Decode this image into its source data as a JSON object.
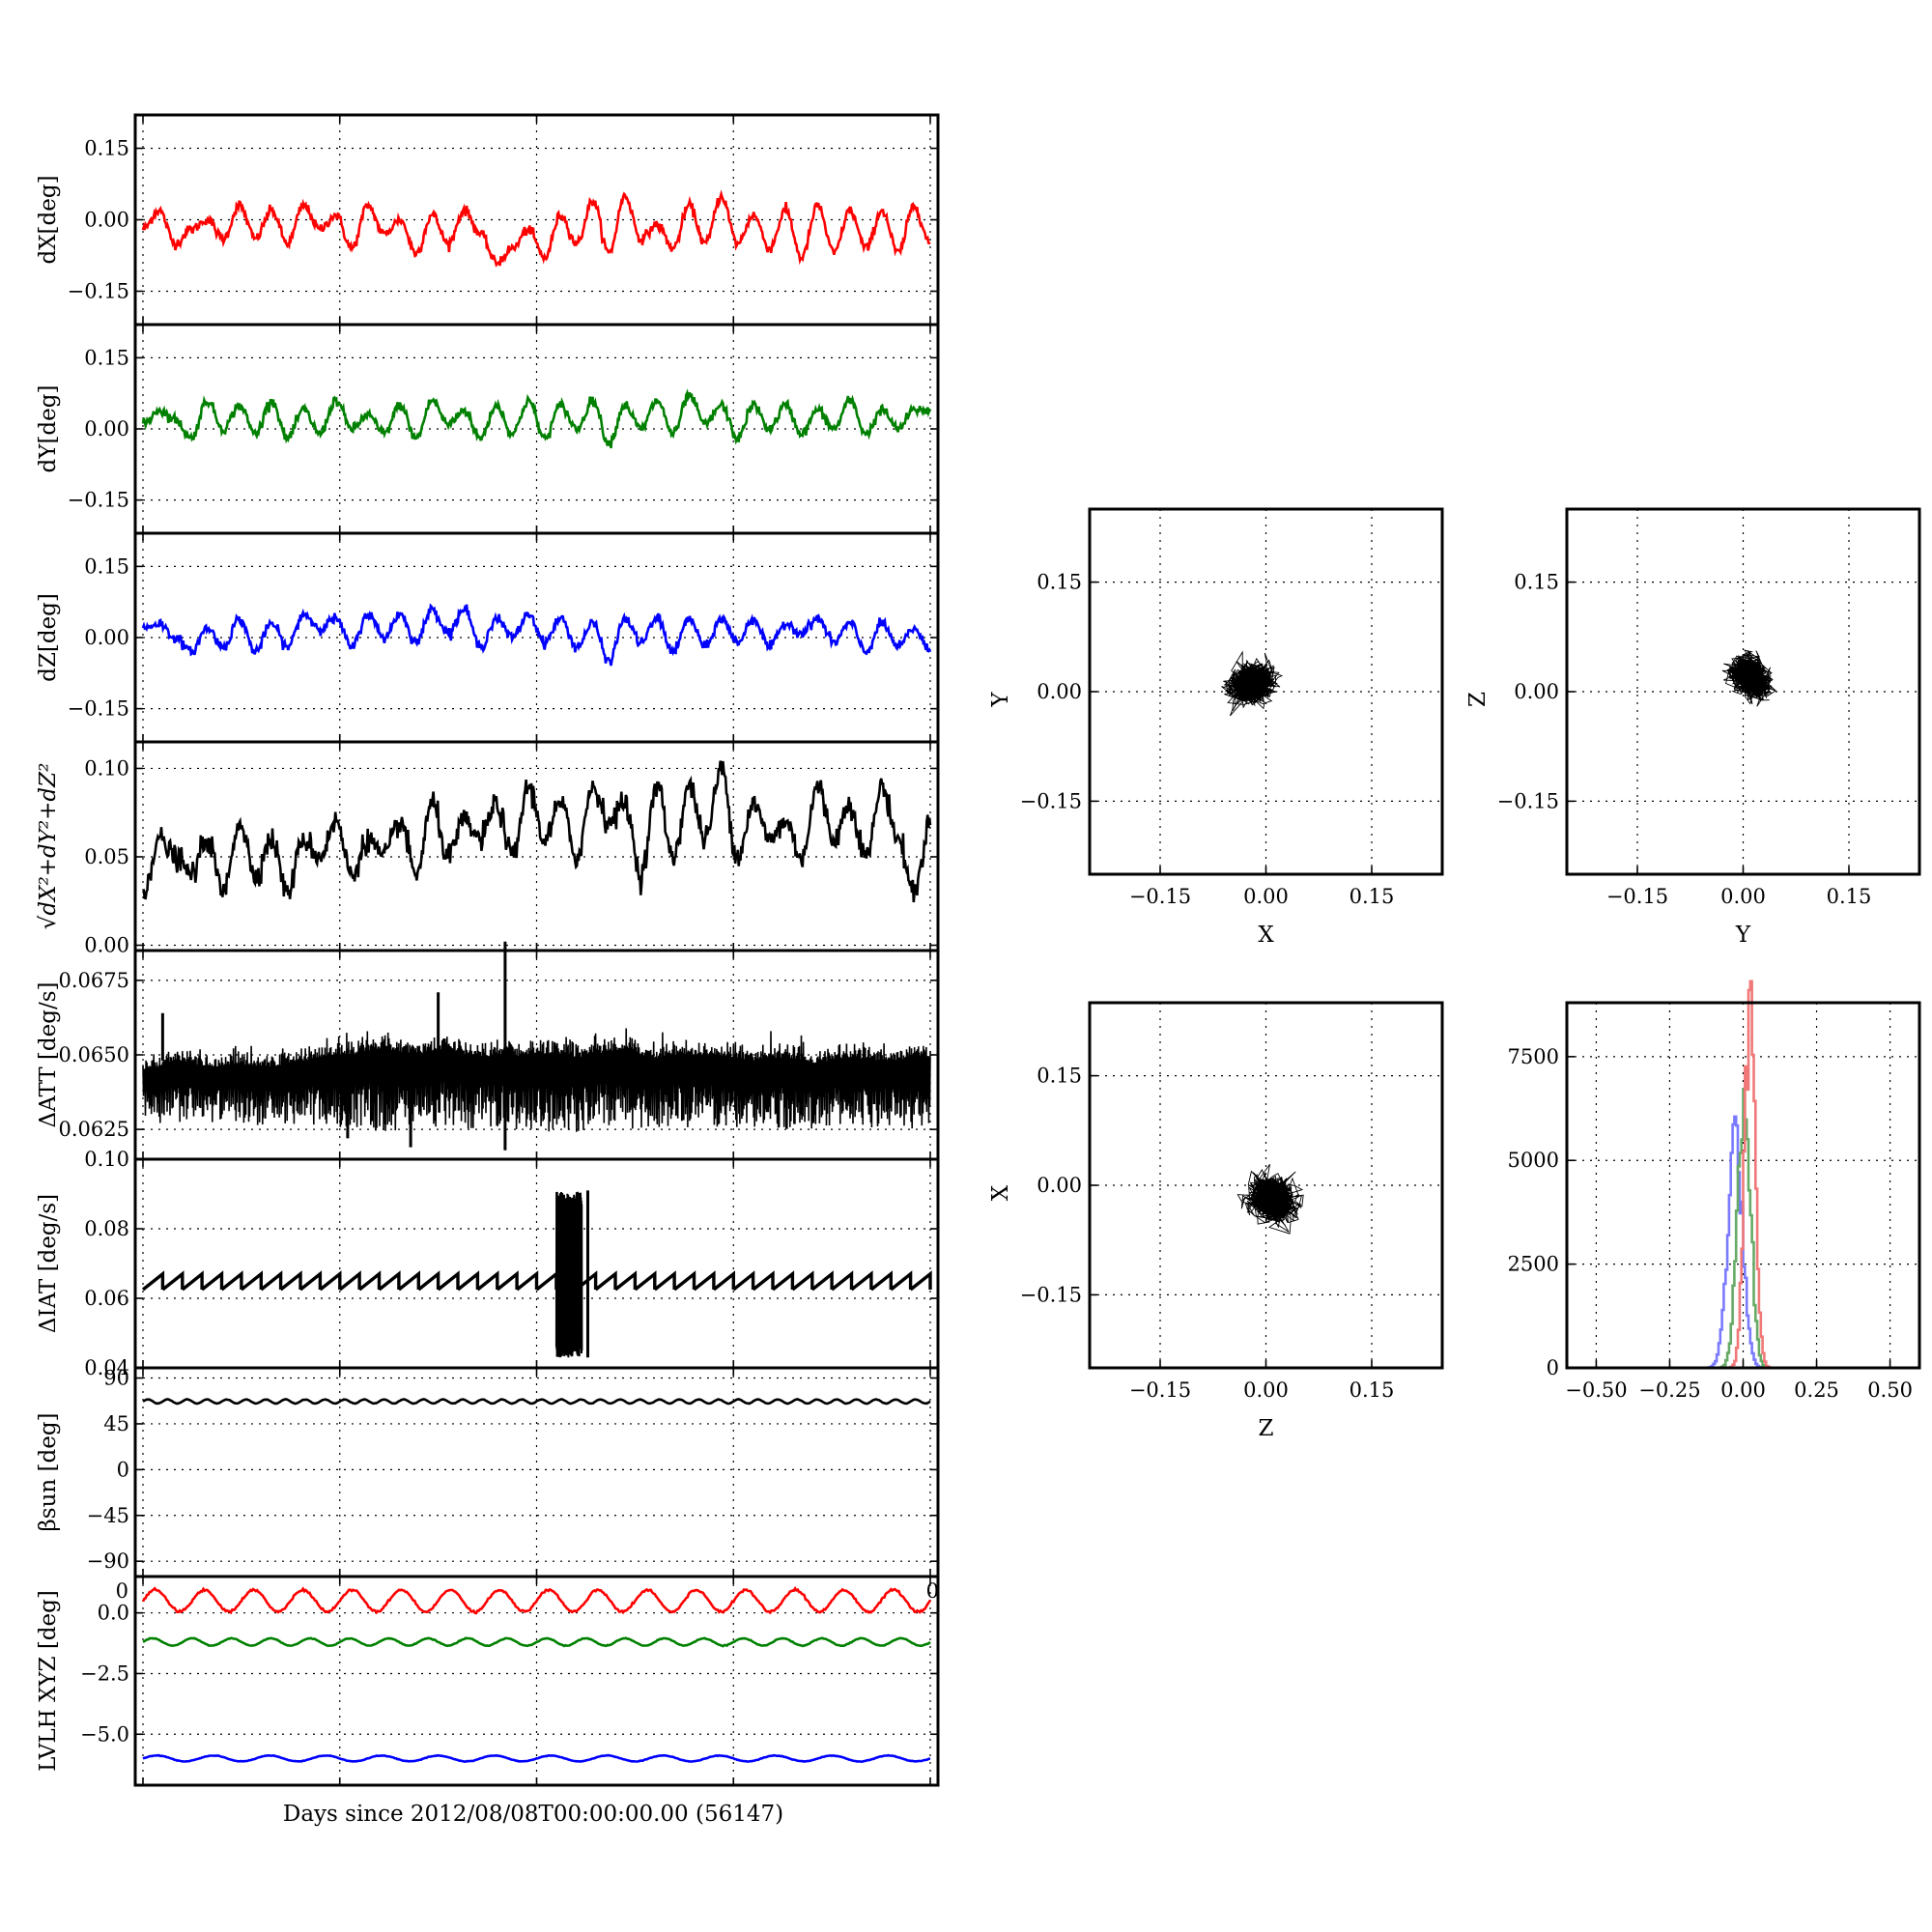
{
  "figure": {
    "bottom_xlabel": "Days since 2012/08/08T00:00:00.00 (56147)",
    "stray_tick_left": "0",
    "stray_tick_right": "0"
  },
  "colors": {
    "red": "#ff0000",
    "green": "#008000",
    "blue": "#0000ff",
    "black": "#000000",
    "hist_red": "#f07878",
    "hist_green": "#66aa66",
    "hist_blue": "#7a7aff"
  },
  "chart_data": [
    {
      "id": "dX",
      "type": "line",
      "ylabel": "dX[deg]",
      "ylim": [
        -0.22,
        0.22
      ],
      "yticks": [
        0.15,
        0.0,
        -0.15
      ],
      "ytick_labels": [
        "0.15",
        "0.00",
        "−0.15"
      ],
      "xlim": [
        0,
        20
      ],
      "xgrid": [
        0,
        5,
        10,
        15,
        20
      ],
      "series": [
        {
          "color": "red",
          "values": [
            -0.02,
            0.02,
            -0.05,
            -0.02,
            0.0,
            -0.04,
            0.03,
            -0.04,
            0.02,
            -0.05,
            0.03,
            -0.02,
            0.01,
            -0.06,
            0.03,
            -0.03,
            0.0,
            -0.07,
            0.01,
            -0.05,
            0.02,
            -0.03,
            -0.09,
            -0.06,
            -0.02,
            -0.08,
            0.01,
            -0.05,
            0.04,
            -0.07,
            0.05,
            -0.04,
            -0.01,
            -0.06,
            0.03,
            -0.05,
            0.05,
            -0.05,
            0.01,
            -0.06,
            0.02,
            -0.08,
            0.03,
            -0.07,
            0.02,
            -0.06,
            0.02,
            -0.07,
            0.03,
            -0.05
          ]
        }
      ]
    },
    {
      "id": "dY",
      "type": "line",
      "ylabel": "dY[deg]",
      "ylim": [
        -0.22,
        0.22
      ],
      "yticks": [
        0.15,
        0.0,
        -0.15
      ],
      "ytick_labels": [
        "0.15",
        "0.00",
        "−0.15"
      ],
      "xlim": [
        0,
        20
      ],
      "xgrid": [
        0,
        5,
        10,
        15,
        20
      ],
      "series": [
        {
          "color": "green",
          "values": [
            0.01,
            0.04,
            0.02,
            -0.02,
            0.06,
            0.0,
            0.05,
            -0.01,
            0.06,
            -0.02,
            0.04,
            -0.01,
            0.06,
            0.0,
            0.03,
            -0.01,
            0.05,
            -0.02,
            0.06,
            0.01,
            0.04,
            -0.02,
            0.05,
            -0.01,
            0.06,
            -0.02,
            0.05,
            0.0,
            0.06,
            -0.03,
            0.05,
            0.0,
            0.06,
            -0.01,
            0.07,
            0.01,
            0.05,
            -0.02,
            0.05,
            0.0,
            0.05,
            -0.01,
            0.04,
            0.0,
            0.06,
            -0.01,
            0.04,
            0.0,
            0.04,
            0.04
          ]
        }
      ]
    },
    {
      "id": "dZ",
      "type": "line",
      "ylabel": "dZ[deg]",
      "ylim": [
        -0.22,
        0.22
      ],
      "yticks": [
        0.15,
        0.0,
        -0.15
      ],
      "ytick_labels": [
        "0.15",
        "0.00",
        "−0.15"
      ],
      "xlim": [
        0,
        20
      ],
      "xgrid": [
        0,
        5,
        10,
        15,
        20
      ],
      "series": [
        {
          "color": "blue",
          "values": [
            0.02,
            0.03,
            0.0,
            -0.03,
            0.02,
            -0.02,
            0.04,
            -0.03,
            0.03,
            -0.02,
            0.05,
            0.02,
            0.04,
            -0.02,
            0.05,
            0.0,
            0.05,
            -0.01,
            0.06,
            0.01,
            0.06,
            -0.02,
            0.04,
            0.0,
            0.05,
            -0.01,
            0.04,
            -0.02,
            0.03,
            -0.05,
            0.04,
            -0.01,
            0.04,
            -0.03,
            0.04,
            -0.02,
            0.04,
            -0.01,
            0.04,
            -0.02,
            0.03,
            0.01,
            0.04,
            -0.01,
            0.03,
            -0.03,
            0.03,
            -0.02,
            0.02,
            -0.03
          ]
        }
      ]
    },
    {
      "id": "dXYZ",
      "type": "line",
      "ylabel": "√dX²+dY²+dZ²",
      "ylim": [
        -0.003,
        0.115
      ],
      "yticks": [
        0.1,
        0.05,
        0.0
      ],
      "ytick_labels": [
        "0.10",
        "0.05",
        "0.00"
      ],
      "xlim": [
        0,
        20
      ],
      "xgrid": [
        0,
        5,
        10,
        15,
        20
      ],
      "series": [
        {
          "color": "black",
          "values": [
            0.03,
            0.06,
            0.05,
            0.04,
            0.06,
            0.03,
            0.07,
            0.04,
            0.06,
            0.03,
            0.06,
            0.05,
            0.07,
            0.04,
            0.06,
            0.05,
            0.07,
            0.04,
            0.08,
            0.05,
            0.07,
            0.06,
            0.08,
            0.05,
            0.09,
            0.06,
            0.08,
            0.05,
            0.09,
            0.07,
            0.08,
            0.04,
            0.09,
            0.05,
            0.09,
            0.06,
            0.1,
            0.05,
            0.08,
            0.06,
            0.07,
            0.05,
            0.09,
            0.06,
            0.08,
            0.05,
            0.09,
            0.06,
            0.03,
            0.07
          ]
        }
      ]
    },
    {
      "id": "dATT",
      "type": "line",
      "ylabel": "ΔATT [deg/s]",
      "ylim": [
        0.0615,
        0.0685
      ],
      "yticks": [
        0.0675,
        0.065,
        0.0625
      ],
      "ytick_labels": [
        "0.0675",
        "0.0650",
        "0.0625"
      ],
      "xlim": [
        0,
        20
      ],
      "xgrid": [
        0,
        5,
        10,
        15,
        20
      ],
      "band": {
        "base_values": [
          0.0645,
          0.0646,
          0.0648,
          0.0647,
          0.0646,
          0.0646,
          0.0647,
          0.0646,
          0.0646,
          0.0647,
          0.0648,
          0.0649,
          0.065,
          0.065,
          0.0651,
          0.0652,
          0.0651,
          0.065,
          0.0651,
          0.0652,
          0.065,
          0.0649,
          0.065,
          0.065,
          0.0649,
          0.065,
          0.065,
          0.0649,
          0.065,
          0.0651,
          0.0652,
          0.065,
          0.0649,
          0.065,
          0.065,
          0.065,
          0.0649,
          0.0649,
          0.0648,
          0.0649,
          0.0649,
          0.0648,
          0.0647,
          0.0648,
          0.0649,
          0.0648,
          0.0648,
          0.0648,
          0.0649,
          0.0649
        ],
        "low_values": [
          0.063,
          0.0627,
          0.0627,
          0.0628,
          0.0627,
          0.0628,
          0.0627,
          0.0626,
          0.0627,
          0.0627,
          0.0626,
          0.0626,
          0.0625,
          0.0626,
          0.0625,
          0.0624,
          0.0624,
          0.0625,
          0.0626,
          0.0625,
          0.0625,
          0.0625,
          0.0626,
          0.0625,
          0.0625,
          0.0624,
          0.0625,
          0.0624,
          0.0625,
          0.0625,
          0.0625,
          0.0625,
          0.0625,
          0.0626,
          0.0625,
          0.0625,
          0.0626,
          0.0625,
          0.0625,
          0.0626,
          0.0625,
          0.0625,
          0.0625,
          0.0626,
          0.0626,
          0.0625,
          0.0626,
          0.0626,
          0.0625,
          0.0627
        ]
      },
      "spikes": [
        [
          0.5,
          0.0664
        ],
        [
          9.2,
          0.0688
        ],
        [
          9.2,
          0.0618
        ],
        [
          7.5,
          0.0671
        ],
        [
          6.8,
          0.0619
        ],
        [
          5.2,
          0.0622
        ]
      ]
    },
    {
      "id": "dIAT",
      "type": "line",
      "ylabel": "ΔIAT [deg/s]",
      "ylim": [
        0.04,
        0.1
      ],
      "yticks": [
        0.1,
        0.08,
        0.06,
        0.04
      ],
      "ytick_labels": [
        "0.10",
        "0.08",
        "0.06",
        "0.04"
      ],
      "xlim": [
        0,
        20
      ],
      "xgrid": [
        0,
        5,
        10,
        15,
        20
      ],
      "sawtooth": {
        "low": 0.0625,
        "high": 0.067,
        "teeth": 40
      },
      "burst": {
        "x_start": 10.5,
        "x_end": 11.3,
        "low": 0.043,
        "high": 0.091,
        "spike_x": 11.3
      }
    },
    {
      "id": "beta",
      "type": "line",
      "ylabel": "βsun [deg]",
      "ylim": [
        -105,
        100
      ],
      "yticks": [
        90,
        45,
        0,
        -45,
        -90
      ],
      "ytick_labels": [
        "90",
        "45",
        "0",
        "−45",
        "−90"
      ],
      "xlim": [
        0,
        20
      ],
      "xgrid": [
        0,
        5,
        10,
        15,
        20
      ],
      "series": [
        {
          "color": "black",
          "mean": 67,
          "amp": 2,
          "cycles": 40
        }
      ]
    },
    {
      "id": "lvlh",
      "type": "line",
      "ylabel": "LVLH XYZ [deg]",
      "ylim": [
        -7.1,
        1.5
      ],
      "yticks": [
        0.0,
        -2.5,
        -5.0
      ],
      "ytick_labels": [
        "0.0",
        "−2.5",
        "−5.0"
      ],
      "xlim": [
        0,
        20
      ],
      "xgrid": [
        0,
        5,
        10,
        15,
        20
      ],
      "xlabel": "Days since 2012/08/08T00:00:00.00 (56147)",
      "series": [
        {
          "color": "red",
          "mean": 0.5,
          "amp": 0.45,
          "cycles": 16
        },
        {
          "color": "green",
          "mean": -1.2,
          "amp": 0.15,
          "cycles": 20
        },
        {
          "color": "blue",
          "mean": -6.0,
          "amp": 0.12,
          "cycles": 14
        }
      ]
    },
    {
      "id": "scatterXY",
      "type": "scatter",
      "xlabel": "X",
      "ylabel": "Y",
      "xlim": [
        -0.25,
        0.25
      ],
      "ylim": [
        -0.25,
        0.25
      ],
      "ticks": [
        -0.15,
        0.0,
        0.15
      ],
      "tick_labels": [
        "−0.15",
        "0.00",
        "0.15"
      ],
      "cloud": {
        "cx": -0.02,
        "cy": 0.01,
        "sx": 0.03,
        "sy": 0.025,
        "tilt": 0.3
      }
    },
    {
      "id": "scatterYZ",
      "type": "scatter",
      "xlabel": "Y",
      "ylabel": "Z",
      "xlim": [
        -0.25,
        0.25
      ],
      "ylim": [
        -0.25,
        0.25
      ],
      "ticks": [
        -0.15,
        0.0,
        0.15
      ],
      "tick_labels": [
        "−0.15",
        "0.00",
        "0.15"
      ],
      "cloud": {
        "cx": 0.01,
        "cy": 0.02,
        "sx": 0.028,
        "sy": 0.022,
        "tilt": -0.6
      }
    },
    {
      "id": "scatterZX",
      "type": "scatter",
      "xlabel": "Z",
      "ylabel": "X",
      "xlim": [
        -0.25,
        0.25
      ],
      "ylim": [
        -0.25,
        0.25
      ],
      "ticks": [
        -0.15,
        0.0,
        0.15
      ],
      "tick_labels": [
        "−0.15",
        "0.00",
        "0.15"
      ],
      "cloud": {
        "cx": 0.01,
        "cy": -0.02,
        "sx": 0.027,
        "sy": 0.032,
        "tilt": 1.0
      }
    },
    {
      "id": "hist",
      "type": "bar",
      "xlim": [
        -0.6,
        0.6
      ],
      "ylim": [
        0,
        8800
      ],
      "xticks": [
        -0.5,
        -0.25,
        0.0,
        0.25,
        0.5
      ],
      "xtick_labels": [
        "−0.50",
        "−0.25",
        "0.00",
        "0.25",
        "0.50"
      ],
      "yticks": [
        0,
        2500,
        5000,
        7500
      ],
      "ytick_labels": [
        "0",
        "2500",
        "5000",
        "7500"
      ],
      "series": [
        {
          "color": "hist_blue",
          "center": -0.03,
          "sigma": 0.025,
          "peak": 5600
        },
        {
          "color": "hist_green",
          "center": 0.0,
          "sigma": 0.022,
          "peak": 6700
        },
        {
          "color": "hist_red",
          "center": 0.02,
          "sigma": 0.018,
          "peak": 8700
        }
      ]
    }
  ]
}
